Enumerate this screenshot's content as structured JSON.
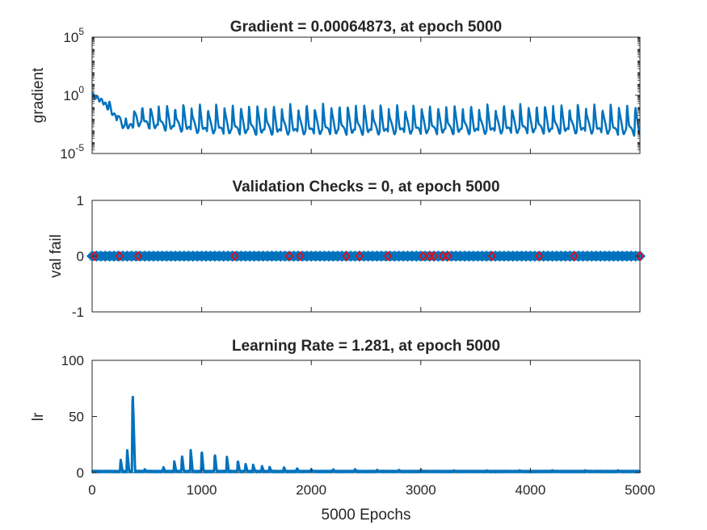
{
  "chart_data": [
    {
      "type": "line",
      "title": "Gradient = 0.00064873, at epoch 5000",
      "ylabel": "gradient",
      "xlabel": "",
      "yscale": "log",
      "xlim": [
        0,
        5000
      ],
      "ylim": [
        1e-05,
        100000
      ],
      "yticks": [
        {
          "base": "10",
          "exp": "-5",
          "value": 1e-05
        },
        {
          "base": "10",
          "exp": "0",
          "value": 1
        },
        {
          "base": "10",
          "exp": "5",
          "value": 100000
        }
      ],
      "line_color": "#0072bd",
      "final_value": 0.00064873,
      "series": [
        {
          "x": [
            0,
            50,
            100,
            150,
            200,
            250,
            300,
            320,
            350,
            400,
            500,
            600,
            800,
            1000,
            1200,
            1500,
            2000,
            2500,
            3000,
            3500,
            4000,
            4500,
            5000
          ],
          "y_floor": [
            1.2,
            0.6,
            0.3,
            0.08,
            0.02,
            0.005,
            0.002,
            0.0015,
            0.002,
            0.004,
            0.003,
            0.002,
            0.0015,
            0.001,
            0.0009,
            0.0008,
            0.0008,
            0.0008,
            0.0009,
            0.0009,
            0.001,
            0.001,
            0.00065
          ],
          "y_peak": [
            1.5,
            0.8,
            0.5,
            0.3,
            0.05,
            0.03,
            0.01,
            0.005,
            0.04,
            0.1,
            0.1,
            0.12,
            0.15,
            0.15,
            0.15,
            0.12,
            0.15,
            0.15,
            0.12,
            0.12,
            0.15,
            0.15,
            0.15
          ],
          "period": 75
        }
      ]
    },
    {
      "type": "scatter",
      "title": "Validation Checks = 0, at epoch 5000",
      "ylabel": "val fail",
      "xlabel": "",
      "xlim": [
        0,
        5000
      ],
      "ylim": [
        -1,
        1
      ],
      "yticks": [
        "-1",
        "0",
        "1"
      ],
      "line_color": "#0072bd",
      "marker_color": "#ff0000",
      "series": [
        {
          "name": "val fail",
          "x_range": [
            0,
            5000
          ],
          "y": 0
        }
      ],
      "highlight_x": [
        20,
        250,
        420,
        1300,
        1800,
        1900,
        2320,
        2440,
        2700,
        3020,
        3080,
        3120,
        3200,
        3250,
        3650,
        4080,
        4400,
        5000
      ]
    },
    {
      "type": "line",
      "title": "Learning Rate = 1.281, at epoch 5000",
      "ylabel": "lr",
      "xlabel": "5000 Epochs",
      "xlim": [
        0,
        5000
      ],
      "ylim": [
        0,
        100
      ],
      "yticks": [
        "0",
        "50",
        "100"
      ],
      "xticks": [
        "0",
        "1000",
        "2000",
        "3000",
        "4000",
        "5000"
      ],
      "line_color": "#0072bd",
      "final_value": 1.281,
      "series": [
        {
          "spikes": [
            {
              "x": 260,
              "peak": 12
            },
            {
              "x": 320,
              "peak": 21
            },
            {
              "x": 370,
              "peak": 74
            },
            {
              "x": 480,
              "peak": 3
            },
            {
              "x": 650,
              "peak": 5
            },
            {
              "x": 750,
              "peak": 10
            },
            {
              "x": 820,
              "peak": 16
            },
            {
              "x": 900,
              "peak": 20
            },
            {
              "x": 1000,
              "peak": 20
            },
            {
              "x": 1120,
              "peak": 17
            },
            {
              "x": 1230,
              "peak": 14
            },
            {
              "x": 1330,
              "peak": 11
            },
            {
              "x": 1400,
              "peak": 8
            },
            {
              "x": 1470,
              "peak": 7
            },
            {
              "x": 1550,
              "peak": 6
            },
            {
              "x": 1620,
              "peak": 5
            },
            {
              "x": 1750,
              "peak": 5
            },
            {
              "x": 1870,
              "peak": 4
            },
            {
              "x": 2000,
              "peak": 3
            },
            {
              "x": 2200,
              "peak": 3
            },
            {
              "x": 2400,
              "peak": 3
            },
            {
              "x": 2600,
              "peak": 2.5
            },
            {
              "x": 2800,
              "peak": 2.5
            },
            {
              "x": 3000,
              "peak": 2.5
            },
            {
              "x": 3300,
              "peak": 2
            },
            {
              "x": 3600,
              "peak": 2
            },
            {
              "x": 3900,
              "peak": 2
            },
            {
              "x": 4200,
              "peak": 2
            },
            {
              "x": 4500,
              "peak": 2
            },
            {
              "x": 4800,
              "peak": 2
            }
          ],
          "baseline": 1,
          "end": {
            "x": 5000,
            "y": 1.281
          }
        }
      ]
    }
  ]
}
